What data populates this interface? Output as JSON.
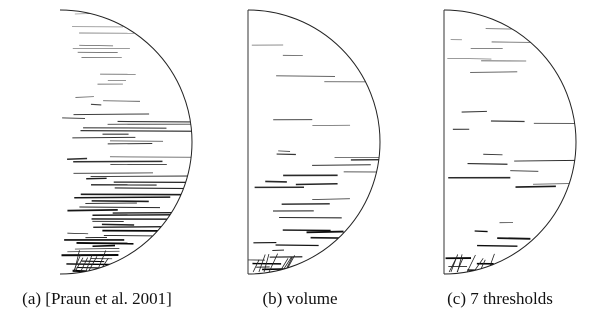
{
  "figure": {
    "panels": [
      {
        "caption": "(a) [Praun et al. 2001]"
      },
      {
        "caption": "(b) volume"
      },
      {
        "caption": "(c) 7 thresholds"
      }
    ]
  }
}
